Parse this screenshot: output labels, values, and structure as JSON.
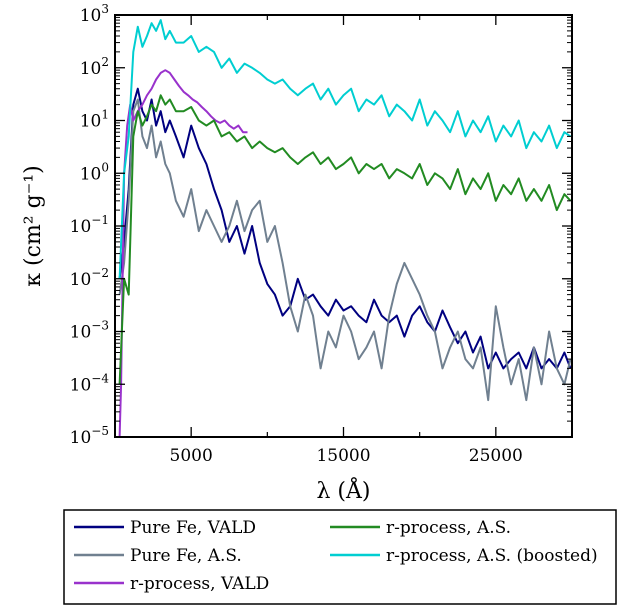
{
  "chart_data": {
    "type": "line",
    "title": "",
    "xlabel": "λ (Å)",
    "ylabel": "κ (cm² g⁻¹)",
    "xlim": [
      0,
      30000
    ],
    "ylim": [
      1e-05,
      1000
    ],
    "yscale": "log",
    "grid": false,
    "legend_position": "bottom-outside",
    "x_ticks": [
      5000,
      15000,
      25000
    ],
    "x_tick_labels": [
      "5000",
      "15000",
      "25000"
    ],
    "y_ticks": [
      1e-05,
      0.0001,
      0.001,
      0.01,
      0.1,
      1,
      10,
      100,
      1000
    ],
    "y_tick_labels": [
      {
        "base": "10",
        "exp": "−5"
      },
      {
        "base": "10",
        "exp": "−4"
      },
      {
        "base": "10",
        "exp": "−3"
      },
      {
        "base": "10",
        "exp": "−2"
      },
      {
        "base": "10",
        "exp": "−1"
      },
      {
        "base": "10",
        "exp": "0"
      },
      {
        "base": "10",
        "exp": "1"
      },
      {
        "base": "10",
        "exp": "2"
      },
      {
        "base": "10",
        "exp": "3"
      }
    ],
    "series": [
      {
        "name": "Pure Fe, VALD",
        "color": "#000080",
        "x": [
          300,
          600,
          900,
          1200,
          1500,
          1800,
          2100,
          2400,
          2700,
          3000,
          3300,
          3600,
          4000,
          4500,
          5000,
          5500,
          6000,
          6500,
          7000,
          7500,
          8000,
          8500,
          9000,
          9500,
          10000,
          10500,
          11000,
          11500,
          12000,
          12500,
          13000,
          13500,
          14000,
          14500,
          15000,
          15500,
          16000,
          16500,
          17000,
          17500,
          18000,
          18500,
          19000,
          19500,
          20000,
          20500,
          21000,
          21500,
          22000,
          22500,
          23000,
          23500,
          24000,
          24500,
          25000,
          25500,
          26000,
          26500,
          27000,
          27500,
          28000,
          28500,
          29000,
          29500,
          29900
        ],
        "y": [
          0.01,
          0.05,
          0.5,
          20,
          40,
          15,
          10,
          25,
          8,
          15,
          6,
          10,
          5,
          2,
          8,
          3,
          1.5,
          0.5,
          0.2,
          0.05,
          0.1,
          0.03,
          0.1,
          0.02,
          0.008,
          0.005,
          0.002,
          0.003,
          0.01,
          0.004,
          0.005,
          0.003,
          0.002,
          0.004,
          0.0025,
          0.003,
          0.002,
          0.0015,
          0.004,
          0.002,
          0.0015,
          0.002,
          0.0008,
          0.002,
          0.003,
          0.0015,
          0.001,
          0.0025,
          0.0012,
          0.0006,
          0.001,
          0.0004,
          0.0008,
          0.0002,
          0.0004,
          0.0002,
          0.0003,
          0.0004,
          0.0002,
          0.0005,
          0.0002,
          0.0003,
          0.0002,
          0.0004,
          0.0002
        ]
      },
      {
        "name": "Pure Fe, A.S.",
        "color": "#708090",
        "x": [
          300,
          600,
          900,
          1200,
          1500,
          1800,
          2100,
          2400,
          2700,
          3000,
          3300,
          3600,
          4000,
          4500,
          5000,
          5500,
          6000,
          6500,
          7000,
          7500,
          8000,
          8500,
          9000,
          9500,
          10000,
          10500,
          11000,
          11500,
          12000,
          12500,
          13000,
          13500,
          14000,
          14500,
          15000,
          15500,
          16000,
          16500,
          17000,
          17500,
          18000,
          18500,
          19000,
          19500,
          20000,
          20500,
          21000,
          21500,
          22000,
          22500,
          23000,
          23500,
          24000,
          24500,
          25000,
          25500,
          26000,
          26500,
          27000,
          27500,
          28000,
          28500,
          29000,
          29500,
          29900
        ],
        "y": [
          0.005,
          0.02,
          0.3,
          15,
          25,
          5,
          3,
          8,
          2,
          4,
          1.5,
          1,
          0.3,
          0.15,
          0.5,
          0.08,
          0.2,
          0.1,
          0.05,
          0.1,
          0.3,
          0.08,
          0.2,
          0.3,
          0.05,
          0.1,
          0.02,
          0.003,
          0.001,
          0.005,
          0.002,
          0.0002,
          0.001,
          0.0005,
          0.002,
          0.001,
          0.0003,
          0.0005,
          0.001,
          0.0002,
          0.002,
          0.008,
          0.02,
          0.01,
          0.005,
          0.002,
          0.001,
          0.0002,
          0.0005,
          0.001,
          0.0003,
          0.0002,
          0.0005,
          5e-05,
          0.003,
          0.0005,
          0.0001,
          0.0003,
          5e-05,
          0.0005,
          0.0001,
          0.001,
          0.0002,
          0.0001,
          0.0003
        ]
      },
      {
        "name": "r-process, VALD",
        "color": "#9932CC",
        "x": [
          300,
          400,
          500,
          600,
          800,
          1000,
          1200,
          1500,
          1800,
          2100,
          2400,
          2700,
          3000,
          3300,
          3600,
          3900,
          4200,
          4500,
          4800,
          5100,
          5400,
          5700,
          6000,
          6300,
          6600,
          6900,
          7200,
          7500,
          7800,
          8100,
          8400,
          8700
        ],
        "y": [
          1e-05,
          0.0001,
          0.01,
          1,
          8,
          20,
          10,
          15,
          20,
          30,
          40,
          60,
          80,
          90,
          80,
          60,
          45,
          35,
          30,
          25,
          22,
          18,
          15,
          12,
          10,
          9,
          10,
          8,
          7,
          8,
          6,
          6
        ]
      },
      {
        "name": "r-process, A.S.",
        "color": "#228B22",
        "x": [
          300,
          600,
          900,
          1200,
          1500,
          1800,
          2100,
          2400,
          2700,
          3000,
          3300,
          3600,
          4000,
          4500,
          5000,
          5500,
          6000,
          6500,
          7000,
          7500,
          8000,
          8500,
          9000,
          9500,
          10000,
          10500,
          11000,
          11500,
          12000,
          12500,
          13000,
          13500,
          14000,
          14500,
          15000,
          15500,
          16000,
          16500,
          17000,
          17500,
          18000,
          18500,
          19000,
          19500,
          20000,
          20500,
          21000,
          21500,
          22000,
          22500,
          23000,
          23500,
          24000,
          24500,
          25000,
          25500,
          26000,
          26500,
          27000,
          27500,
          28000,
          28500,
          29000,
          29500,
          29900
        ],
        "y": [
          0.0001,
          0.01,
          0.005,
          5,
          15,
          8,
          12,
          20,
          15,
          30,
          20,
          25,
          15,
          15,
          18,
          10,
          8,
          10,
          5,
          6,
          4,
          5,
          3,
          4,
          3,
          2.5,
          3,
          2,
          1.5,
          2,
          2.5,
          1.5,
          2,
          1.2,
          1.5,
          2,
          1,
          1.5,
          1.2,
          1.5,
          0.8,
          1.2,
          1,
          0.8,
          1.5,
          0.6,
          1,
          0.8,
          0.5,
          1.2,
          0.4,
          0.8,
          0.5,
          1,
          0.3,
          0.6,
          0.4,
          0.8,
          0.3,
          0.5,
          0.3,
          0.6,
          0.2,
          0.4,
          0.3
        ]
      },
      {
        "name": "r-process, A.S. (boosted)",
        "color": "#00CED1",
        "x": [
          300,
          600,
          900,
          1200,
          1500,
          1800,
          2100,
          2400,
          2700,
          3000,
          3300,
          3600,
          4000,
          4500,
          5000,
          5500,
          6000,
          6500,
          7000,
          7500,
          8000,
          8500,
          9000,
          9500,
          10000,
          10500,
          11000,
          11500,
          12000,
          12500,
          13000,
          13500,
          14000,
          14500,
          15000,
          15500,
          16000,
          16500,
          17000,
          17500,
          18000,
          18500,
          19000,
          19500,
          20000,
          20500,
          21000,
          21500,
          22000,
          22500,
          23000,
          23500,
          24000,
          24500,
          25000,
          25500,
          26000,
          26500,
          27000,
          27500,
          28000,
          28500,
          29000,
          29500,
          29900
        ],
        "y": [
          0.01,
          1,
          5,
          200,
          600,
          250,
          400,
          700,
          500,
          800,
          350,
          500,
          300,
          300,
          400,
          200,
          250,
          200,
          100,
          150,
          80,
          120,
          100,
          80,
          60,
          50,
          60,
          40,
          30,
          40,
          50,
          25,
          40,
          20,
          30,
          40,
          15,
          25,
          20,
          30,
          12,
          20,
          15,
          10,
          25,
          8,
          15,
          10,
          6,
          15,
          5,
          10,
          6,
          12,
          4,
          8,
          5,
          10,
          3,
          6,
          4,
          8,
          3,
          6,
          5
        ]
      }
    ]
  }
}
